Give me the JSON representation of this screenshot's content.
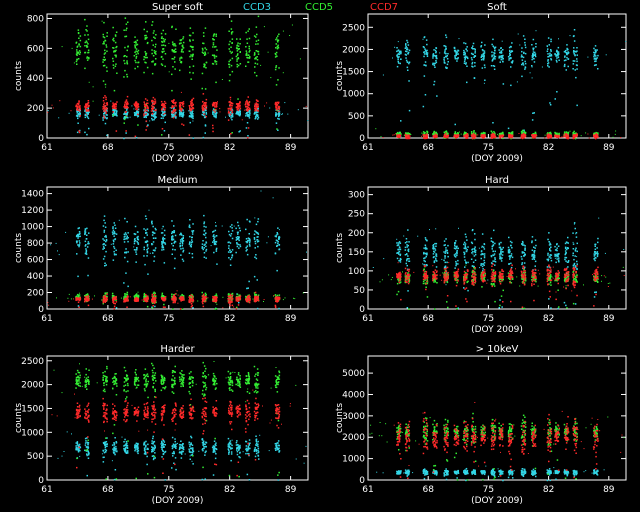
{
  "legend": [
    {
      "label": "CCD3",
      "color": "#33d6e6"
    },
    {
      "label": "CCD5",
      "color": "#33ee33"
    },
    {
      "label": "CCD7",
      "color": "#ff2a2a"
    }
  ],
  "chart_data": [
    {
      "type": "scatter",
      "title": "Super soft",
      "xlabel": "(DOY 2009)",
      "ylabel": "counts",
      "xlim": [
        61,
        91
      ],
      "xticks": [
        61,
        68,
        75,
        82,
        89
      ],
      "ylim": [
        0,
        830
      ],
      "yticks": [
        0,
        200,
        400,
        600,
        800
      ],
      "series": [
        {
          "name": "CCD3",
          "color": "#33d6e6",
          "level": 170,
          "spread": 25
        },
        {
          "name": "CCD5",
          "color": "#33ee33",
          "level": 600,
          "spread": 110
        },
        {
          "name": "CCD7",
          "color": "#ff2a2a",
          "level": 220,
          "spread": 30
        }
      ]
    },
    {
      "type": "scatter",
      "title": "Soft",
      "xlabel": "(DOY 2009)",
      "ylabel": "counts",
      "xlim": [
        61,
        91
      ],
      "xticks": [
        61,
        68,
        75,
        82,
        89
      ],
      "ylim": [
        0,
        2800
      ],
      "yticks": [
        0,
        500,
        1000,
        1500,
        2000,
        2500
      ],
      "series": [
        {
          "name": "CCD3",
          "color": "#33d6e6",
          "level": 1900,
          "spread": 200
        },
        {
          "name": "CCD5",
          "color": "#33ee33",
          "level": 100,
          "spread": 40
        },
        {
          "name": "CCD7",
          "color": "#ff2a2a",
          "level": 60,
          "spread": 30
        }
      ]
    },
    {
      "type": "scatter",
      "title": "Medium",
      "xlabel": "",
      "ylabel": "counts",
      "xlim": [
        61,
        91
      ],
      "xticks": [
        61,
        68,
        75,
        82,
        89
      ],
      "ylim": [
        0,
        1480
      ],
      "yticks": [
        0,
        200,
        400,
        600,
        800,
        1000,
        1200,
        1400
      ],
      "series": [
        {
          "name": "CCD3",
          "color": "#33d6e6",
          "level": 850,
          "spread": 150
        },
        {
          "name": "CCD5",
          "color": "#33ee33",
          "level": 150,
          "spread": 30
        },
        {
          "name": "CCD7",
          "color": "#ff2a2a",
          "level": 130,
          "spread": 30
        }
      ]
    },
    {
      "type": "scatter",
      "title": "Hard",
      "xlabel": "(DOY 2009)",
      "ylabel": "counts",
      "xlim": [
        61,
        91
      ],
      "xticks": [
        61,
        68,
        75,
        82,
        89
      ],
      "ylim": [
        0,
        320
      ],
      "yticks": [
        0,
        50,
        100,
        150,
        200,
        250,
        300
      ],
      "series": [
        {
          "name": "CCD3",
          "color": "#33d6e6",
          "level": 150,
          "spread": 30
        },
        {
          "name": "CCD5",
          "color": "#33ee33",
          "level": 85,
          "spread": 10
        },
        {
          "name": "CCD7",
          "color": "#ff2a2a",
          "level": 90,
          "spread": 15
        }
      ]
    },
    {
      "type": "scatter",
      "title": "Harder",
      "xlabel": "(DOY 2009)",
      "ylabel": "counts",
      "xlim": [
        61,
        91
      ],
      "xticks": [
        61,
        68,
        75,
        82,
        89
      ],
      "ylim": [
        0,
        2600
      ],
      "yticks": [
        0,
        500,
        1000,
        1500,
        2000,
        2500
      ],
      "series": [
        {
          "name": "CCD3",
          "color": "#33d6e6",
          "level": 700,
          "spread": 120
        },
        {
          "name": "CCD5",
          "color": "#33ee33",
          "level": 2100,
          "spread": 150
        },
        {
          "name": "CCD7",
          "color": "#ff2a2a",
          "level": 1450,
          "spread": 150
        }
      ]
    },
    {
      "type": "scatter",
      "title": "> 10keV",
      "xlabel": "(DOY 2009)",
      "ylabel": "counts",
      "xlim": [
        61,
        91
      ],
      "xticks": [
        61,
        68,
        75,
        82,
        89
      ],
      "ylim": [
        0,
        5800
      ],
      "yticks": [
        0,
        1000,
        2000,
        3000,
        4000,
        5000
      ],
      "series": [
        {
          "name": "CCD3",
          "color": "#33d6e6",
          "level": 400,
          "spread": 80
        },
        {
          "name": "CCD5",
          "color": "#33ee33",
          "level": 2300,
          "spread": 300
        },
        {
          "name": "CCD7",
          "color": "#ff2a2a",
          "level": 2100,
          "spread": 500
        }
      ]
    }
  ]
}
